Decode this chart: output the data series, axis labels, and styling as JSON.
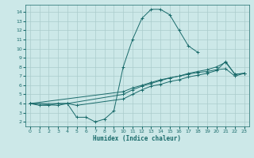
{
  "bg_color": "#cce8e8",
  "grid_color": "#aacccc",
  "line_color": "#1a6b6b",
  "ylabel_values": [
    2,
    3,
    4,
    5,
    6,
    7,
    8,
    9,
    10,
    11,
    12,
    13,
    14
  ],
  "xlabel_values": [
    0,
    1,
    2,
    3,
    4,
    5,
    6,
    7,
    8,
    9,
    10,
    11,
    12,
    13,
    14,
    15,
    16,
    17,
    18,
    19,
    20,
    21,
    22,
    23
  ],
  "xlabel": "Humidex (Indice chaleur)",
  "xlim": [
    -0.5,
    23.5
  ],
  "ylim": [
    1.5,
    14.8
  ],
  "line1_x": [
    0,
    1,
    2,
    3,
    4,
    5,
    6,
    7,
    8,
    9,
    10,
    11,
    12,
    13,
    14,
    15,
    16,
    17,
    18
  ],
  "line1_y": [
    4.0,
    3.8,
    3.8,
    4.0,
    4.0,
    2.5,
    2.5,
    2.0,
    2.3,
    3.2,
    8.0,
    11.0,
    13.3,
    14.3,
    14.3,
    13.7,
    12.0,
    10.3,
    9.6
  ],
  "line2_x": [
    0,
    3,
    4,
    5,
    10,
    11,
    12,
    13,
    14,
    15,
    16,
    17,
    18,
    19,
    20,
    21,
    22,
    23
  ],
  "line2_y": [
    4.0,
    3.8,
    4.0,
    3.8,
    4.5,
    5.0,
    5.5,
    5.9,
    6.1,
    6.4,
    6.6,
    6.9,
    7.1,
    7.3,
    7.6,
    8.6,
    7.2,
    7.3
  ],
  "line3_x": [
    0,
    4,
    10,
    11,
    12,
    13,
    14,
    15,
    16,
    17,
    18,
    19,
    20,
    21,
    22,
    23
  ],
  "line3_y": [
    4.0,
    4.0,
    5.0,
    5.5,
    5.9,
    6.2,
    6.5,
    6.8,
    7.0,
    7.3,
    7.5,
    7.7,
    8.0,
    8.5,
    7.2,
    7.3
  ],
  "line4_x": [
    0,
    10,
    11,
    12,
    13,
    14,
    15,
    16,
    17,
    18,
    19,
    20,
    21,
    22,
    23
  ],
  "line4_y": [
    4.0,
    5.3,
    5.7,
    6.0,
    6.3,
    6.6,
    6.8,
    7.0,
    7.2,
    7.4,
    7.5,
    7.7,
    7.8,
    7.0,
    7.3
  ]
}
